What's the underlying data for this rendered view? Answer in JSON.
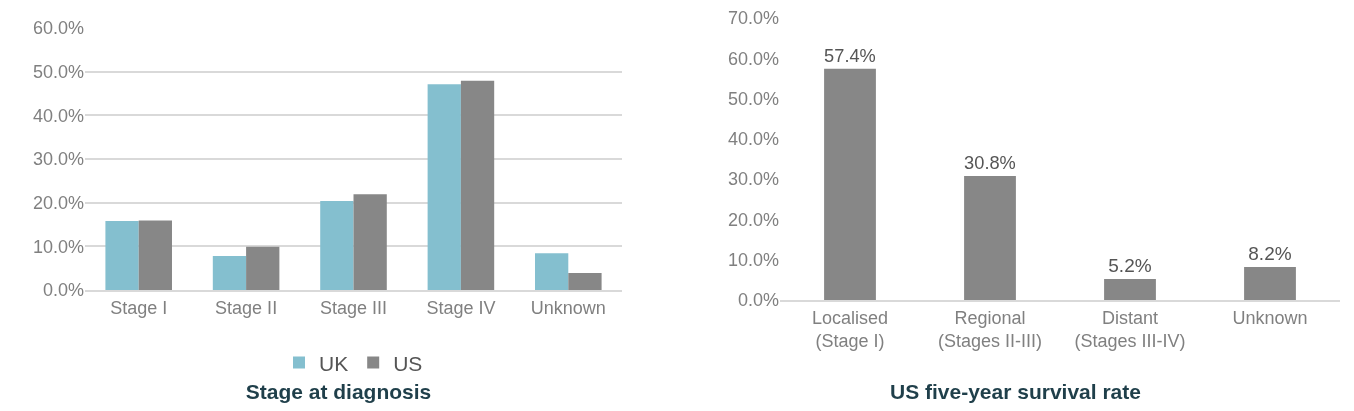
{
  "chart_data": [
    {
      "type": "bar",
      "title": "Stage at diagnosis",
      "categories": [
        "Stage I",
        "Stage II",
        "Stage III",
        "Stage IV",
        "Unknown"
      ],
      "series": [
        {
          "name": "UK",
          "color": "#84bfcf",
          "values": [
            15.8,
            7.8,
            20.4,
            47.1,
            8.4
          ]
        },
        {
          "name": "US",
          "color": "#878787",
          "values": [
            15.9,
            9.9,
            21.9,
            47.9,
            3.9
          ]
        }
      ],
      "ylim": [
        0,
        60
      ],
      "yticks": [
        {
          "value": 0,
          "label": "0.0%"
        },
        {
          "value": 10,
          "label": "10.0%"
        },
        {
          "value": 20,
          "label": "20.0%"
        },
        {
          "value": 30,
          "label": "30.0%"
        },
        {
          "value": 40,
          "label": "40.0%"
        },
        {
          "value": 50,
          "label": "50.0%"
        },
        {
          "value": 60,
          "label": "60.0%"
        }
      ],
      "grid": "y",
      "legend": "bottom"
    },
    {
      "type": "bar",
      "title": "US five-year survival rate",
      "categories": [
        "Localised\n(Stage I)",
        "Regional\n(Stages II-III)",
        "Distant\n(Stages III-IV)",
        "Unknown"
      ],
      "values": [
        57.4,
        30.8,
        5.2,
        8.2
      ],
      "color": "#878787",
      "value_labels": [
        "57.4%",
        "30.8%",
        "5.2%",
        "8.2%"
      ],
      "ylim": [
        0,
        70
      ],
      "yticks": [
        {
          "value": 0,
          "label": "0.0%"
        },
        {
          "value": 10,
          "label": "10.0%"
        },
        {
          "value": 20,
          "label": "20.0%"
        },
        {
          "value": 30,
          "label": "30.0%"
        },
        {
          "value": 40,
          "label": "40.0%"
        },
        {
          "value": 50,
          "label": "50.0%"
        },
        {
          "value": 60,
          "label": "60.0%"
        },
        {
          "value": 70,
          "label": "70.0%"
        }
      ],
      "grid": false,
      "legend": false
    }
  ]
}
